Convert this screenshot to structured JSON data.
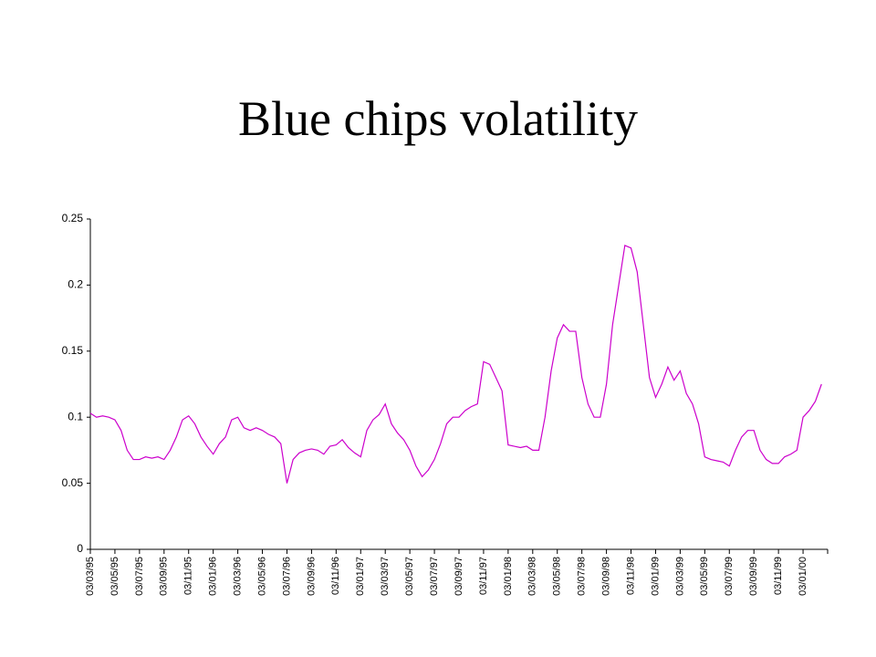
{
  "chart_data": {
    "type": "line",
    "title": "Blue chips volatility",
    "categories": [
      "03/03/95",
      null,
      null,
      null,
      "03/05/95",
      null,
      null,
      null,
      "03/07/95",
      null,
      null,
      null,
      "03/09/95",
      null,
      null,
      null,
      "03/11/95",
      null,
      null,
      null,
      "03/01/96",
      null,
      null,
      null,
      "03/03/96",
      null,
      null,
      null,
      "03/05/96",
      null,
      null,
      null,
      "03/07/96",
      null,
      null,
      null,
      "03/09/96",
      null,
      null,
      null,
      "03/11/96",
      null,
      null,
      null,
      "03/01/97",
      null,
      null,
      null,
      "03/03/97",
      null,
      null,
      null,
      "03/05/97",
      null,
      null,
      null,
      "03/07/97",
      null,
      null,
      null,
      "03/09/97",
      null,
      null,
      null,
      "03/11/97",
      null,
      null,
      null,
      "03/01/98",
      null,
      null,
      null,
      "03/03/98",
      null,
      null,
      null,
      "03/05/98",
      null,
      null,
      null,
      "03/07/98",
      null,
      null,
      null,
      "03/09/98",
      null,
      null,
      null,
      "03/11/98",
      null,
      null,
      null,
      "03/01/99",
      null,
      null,
      null,
      "03/03/99",
      null,
      null,
      null,
      "03/05/99",
      null,
      null,
      null,
      "03/07/99",
      null,
      null,
      null,
      "03/09/99",
      null,
      null,
      null,
      "03/11/99",
      null,
      null,
      null,
      "03/01/00",
      null,
      null,
      null
    ],
    "series": [
      {
        "color": "#cc00cc",
        "values": [
          0.103,
          0.1,
          0.101,
          0.1,
          0.098,
          0.09,
          0.075,
          0.068,
          0.068,
          0.07,
          0.069,
          0.07,
          0.068,
          0.075,
          0.085,
          0.098,
          0.101,
          0.095,
          0.085,
          0.078,
          0.072,
          0.08,
          0.085,
          0.098,
          0.1,
          0.092,
          0.09,
          0.092,
          0.09,
          0.087,
          0.085,
          0.08,
          0.05,
          0.068,
          0.073,
          0.075,
          0.076,
          0.075,
          0.072,
          0.078,
          0.079,
          0.083,
          0.077,
          0.073,
          0.07,
          0.09,
          0.098,
          0.102,
          0.11,
          0.095,
          0.088,
          0.083,
          0.075,
          0.063,
          0.055,
          0.06,
          0.068,
          0.08,
          0.095,
          0.1,
          0.1,
          0.105,
          0.108,
          0.11,
          0.142,
          0.14,
          0.13,
          0.12,
          0.079,
          0.078,
          0.077,
          0.078,
          0.075,
          0.075,
          0.1,
          0.135,
          0.16,
          0.17,
          0.165,
          0.165,
          0.13,
          0.11,
          0.1,
          0.1,
          0.125,
          0.17,
          0.2,
          0.23,
          0.228,
          0.21,
          0.17,
          0.13,
          0.115,
          0.125,
          0.138,
          0.128,
          0.135,
          0.118,
          0.11,
          0.095,
          0.07,
          0.068,
          0.067,
          0.066,
          0.063,
          0.075,
          0.085,
          0.09,
          0.09,
          0.075,
          0.068,
          0.065,
          0.065,
          0.07,
          0.072,
          0.075,
          0.1,
          0.105,
          0.112,
          0.125
        ]
      }
    ],
    "ylim": [
      0,
      0.25
    ],
    "yticks": [
      0,
      0.05,
      0.1,
      0.15,
      0.2,
      0.25
    ],
    "grid": false
  }
}
